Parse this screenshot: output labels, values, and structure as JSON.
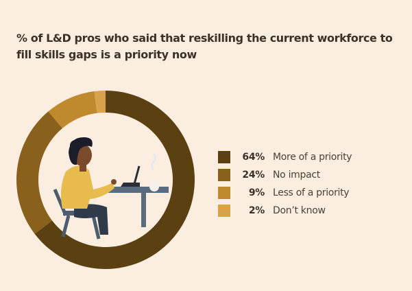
{
  "title": "% of L&D pros who said that reskilling the current workforce to fill skills gaps is a priority now",
  "chart_data": {
    "type": "pie",
    "categories": [
      "More of a priority",
      "No impact",
      "Less of a priority",
      "Don’t know"
    ],
    "values": [
      64,
      24,
      9,
      2
    ],
    "value_labels": [
      "64%",
      "24%",
      "9%",
      "2%"
    ],
    "colors": [
      "#5b4012",
      "#89601c",
      "#bf8a2e",
      "#d9a14c"
    ],
    "legend_position": "right"
  },
  "illustration": {
    "description_icon": "person-at-laptop-illustration"
  }
}
